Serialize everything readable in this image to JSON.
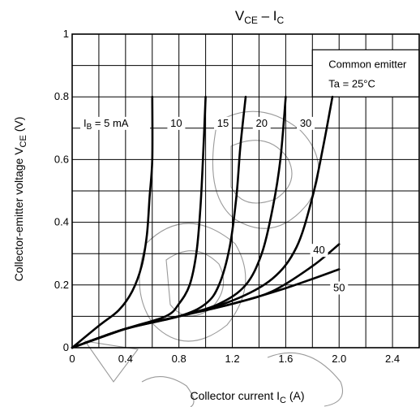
{
  "chart_data": {
    "type": "line",
    "title_main": "V",
    "title_sub1": "CE",
    "title_mid": " – I",
    "title_sub2": "C",
    "xlabel_main": "Collector current   I",
    "xlabel_sub": "C",
    "xlabel_unit": "   (A)",
    "ylabel_main": "Collector-emitter voltage   V",
    "ylabel_sub": "CE",
    "ylabel_unit": "   (V)",
    "xlim": [
      0,
      2.6
    ],
    "ylim": [
      0,
      1.0
    ],
    "x_ticks": [
      0,
      0.4,
      0.8,
      1.2,
      1.6,
      2.0,
      2.4
    ],
    "x_tick_labels": [
      "0",
      "0.4",
      "0.8",
      "1.2",
      "1.6",
      "2.0",
      "2.4"
    ],
    "y_ticks": [
      0,
      0.2,
      0.4,
      0.6,
      0.8,
      1.0
    ],
    "y_tick_labels": [
      "0",
      "0.2",
      "0.4",
      "0.6",
      "0.8",
      "1"
    ],
    "x_grid_step": 0.2,
    "y_grid_step": 0.1,
    "grid": true,
    "legend": {
      "position": "top-right",
      "line1": "Common emitter",
      "line2": "Ta = 25°C"
    },
    "series": [
      {
        "name": "IB = 5 mA",
        "label_main": "I",
        "label_sub": "B",
        "label_rest": " = 5 mA",
        "points": [
          [
            0,
            0
          ],
          [
            0.2,
            0.07
          ],
          [
            0.35,
            0.12
          ],
          [
            0.45,
            0.18
          ],
          [
            0.52,
            0.26
          ],
          [
            0.56,
            0.36
          ],
          [
            0.58,
            0.48
          ],
          [
            0.6,
            0.6
          ],
          [
            0.6,
            0.8
          ]
        ]
      },
      {
        "name": "10",
        "label": "10",
        "points": [
          [
            0,
            0
          ],
          [
            0.4,
            0.06
          ],
          [
            0.7,
            0.1
          ],
          [
            0.8,
            0.14
          ],
          [
            0.88,
            0.2
          ],
          [
            0.93,
            0.3
          ],
          [
            0.96,
            0.44
          ],
          [
            0.98,
            0.6
          ],
          [
            1.0,
            0.8
          ]
        ]
      },
      {
        "name": "15",
        "label": "15",
        "points": [
          [
            0,
            0
          ],
          [
            0.4,
            0.06
          ],
          [
            0.8,
            0.1
          ],
          [
            1.0,
            0.14
          ],
          [
            1.1,
            0.2
          ],
          [
            1.18,
            0.32
          ],
          [
            1.23,
            0.48
          ],
          [
            1.26,
            0.64
          ],
          [
            1.3,
            0.8
          ]
        ]
      },
      {
        "name": "20",
        "label": "20",
        "points": [
          [
            0,
            0
          ],
          [
            0.4,
            0.06
          ],
          [
            0.8,
            0.1
          ],
          [
            1.1,
            0.14
          ],
          [
            1.3,
            0.2
          ],
          [
            1.42,
            0.3
          ],
          [
            1.5,
            0.44
          ],
          [
            1.56,
            0.6
          ],
          [
            1.6,
            0.8
          ]
        ]
      },
      {
        "name": "30",
        "label": "30",
        "points": [
          [
            0,
            0
          ],
          [
            0.4,
            0.06
          ],
          [
            0.8,
            0.1
          ],
          [
            1.2,
            0.15
          ],
          [
            1.5,
            0.22
          ],
          [
            1.68,
            0.32
          ],
          [
            1.8,
            0.48
          ],
          [
            1.88,
            0.64
          ],
          [
            1.95,
            0.8
          ]
        ]
      },
      {
        "name": "40",
        "label": "40",
        "points": [
          [
            0,
            0
          ],
          [
            0.4,
            0.06
          ],
          [
            0.8,
            0.1
          ],
          [
            1.2,
            0.14
          ],
          [
            1.5,
            0.18
          ],
          [
            1.8,
            0.26
          ],
          [
            2.0,
            0.33
          ]
        ]
      },
      {
        "name": "50",
        "label": "50",
        "points": [
          [
            0,
            0
          ],
          [
            0.4,
            0.06
          ],
          [
            0.8,
            0.1
          ],
          [
            1.2,
            0.14
          ],
          [
            1.6,
            0.19
          ],
          [
            2.0,
            0.25
          ]
        ]
      }
    ]
  }
}
